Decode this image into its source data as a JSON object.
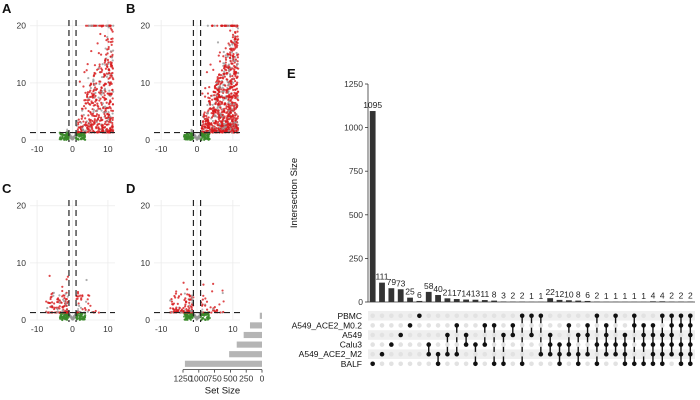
{
  "panels": {
    "volcano_letters": [
      "A",
      "B",
      "C",
      "D"
    ],
    "upset_letter": "E"
  },
  "colors": {
    "sig_up": "#d7191c",
    "sig_down": "#3a8a2a",
    "nonsig": "#999999",
    "bar": "#333333",
    "set_bar": "#b5b5b5",
    "dot_on": "#111111",
    "dot_off": "#e2e2e2",
    "stripe": "#efefef"
  },
  "chart_data": [
    {
      "type": "scatter",
      "panel": "A",
      "xlim": [
        -12,
        12
      ],
      "ylim": [
        0,
        21
      ],
      "xticks": [
        -10,
        0,
        10
      ],
      "yticks": [
        0,
        10,
        20
      ],
      "thresholds": {
        "x": [
          -1,
          1
        ],
        "y": 1.3
      },
      "up_density": "high",
      "up_spread": 2
    },
    {
      "type": "scatter",
      "panel": "B",
      "xlim": [
        -12,
        12
      ],
      "ylim": [
        0,
        21
      ],
      "xticks": [
        -10,
        0,
        10
      ],
      "yticks": [
        0,
        10,
        20
      ],
      "thresholds": {
        "x": [
          -1,
          1
        ],
        "y": 1.3
      },
      "up_density": "very_high",
      "up_spread": 2
    },
    {
      "type": "scatter",
      "panel": "C",
      "xlim": [
        -12,
        12
      ],
      "ylim": [
        0,
        21
      ],
      "xticks": [
        -10,
        0,
        10
      ],
      "yticks": [
        0,
        10,
        20
      ],
      "thresholds": {
        "x": [
          -1,
          1
        ],
        "y": 1.3
      },
      "up_density": "low",
      "up_spread": 1
    },
    {
      "type": "scatter",
      "panel": "D",
      "xlim": [
        -12,
        12
      ],
      "ylim": [
        0,
        21
      ],
      "xticks": [
        -10,
        0,
        10
      ],
      "yticks": [
        0,
        10,
        20
      ],
      "thresholds": {
        "x": [
          -1,
          1
        ],
        "y": 1.3
      },
      "up_density": "low",
      "up_spread": 1
    },
    {
      "type": "bar",
      "panel": "E",
      "title": "",
      "ylabel": "Intersection Size",
      "ylim": [
        0,
        1250
      ],
      "yticks": [
        0,
        250,
        500,
        750,
        1000,
        1250
      ],
      "values": [
        1095,
        111,
        79,
        73,
        25,
        6,
        58,
        40,
        21,
        17,
        14,
        13,
        11,
        8,
        3,
        2,
        2,
        1,
        1,
        22,
        12,
        10,
        8,
        6,
        2,
        1,
        1,
        1,
        1,
        1,
        4,
        4,
        2,
        2,
        2
      ],
      "set_names": [
        "PBMC",
        "A549_ACE2_M0.2",
        "A549",
        "Calu3",
        "A549_ACE2_M2",
        "BALF"
      ],
      "set_sizes": [
        35,
        190,
        290,
        400,
        520,
        1220
      ],
      "set_size_label": "Set Size",
      "set_size_ticks": [
        1250,
        1000,
        750,
        500,
        250,
        0
      ],
      "memberships": [
        [
          5
        ],
        [
          4
        ],
        [
          3
        ],
        [
          2
        ],
        [
          1
        ],
        [
          0
        ],
        [
          3,
          4
        ],
        [
          4,
          5
        ],
        [
          2,
          4
        ],
        [
          1,
          4
        ],
        [
          2,
          3
        ],
        [
          3,
          5
        ],
        [
          1,
          3
        ],
        [
          1,
          5
        ],
        [
          2,
          5
        ],
        [
          1,
          2
        ],
        [
          0,
          5
        ],
        [
          0,
          2
        ],
        [
          0,
          4
        ],
        [
          2,
          3,
          4
        ],
        [
          3,
          4,
          5
        ],
        [
          1,
          3,
          4
        ],
        [
          2,
          4,
          5
        ],
        [
          1,
          2,
          4
        ],
        [
          0,
          3,
          5
        ],
        [
          1,
          2,
          3,
          4
        ],
        [
          0,
          3,
          4
        ],
        [
          2,
          3,
          4,
          5
        ],
        [
          0,
          1,
          5
        ],
        [
          1,
          2,
          3,
          5
        ],
        [
          1,
          2,
          3,
          4,
          5
        ],
        [
          0,
          2,
          3,
          4,
          5
        ],
        [
          0,
          1,
          2,
          3,
          4
        ],
        [
          0,
          1,
          3,
          4,
          5
        ],
        [
          0,
          1,
          2,
          3,
          4,
          5
        ]
      ]
    }
  ]
}
